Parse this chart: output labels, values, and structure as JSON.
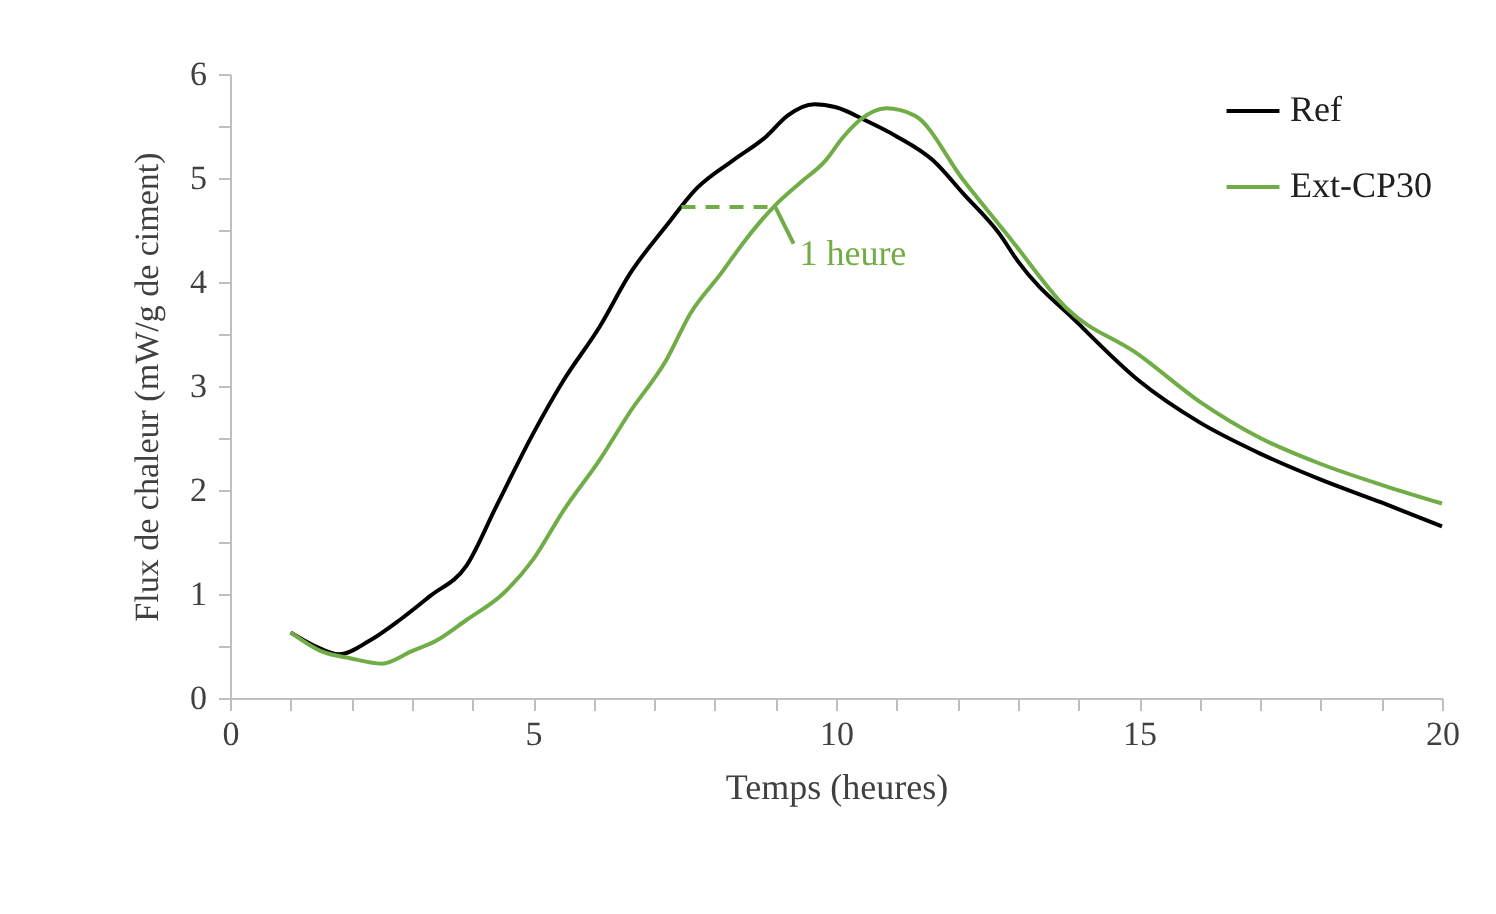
{
  "chart_data": {
    "type": "line",
    "xlabel": "Temps (heures)",
    "ylabel": "Flux de chaleur (mW/g de ciment)",
    "xlim": [
      0,
      20
    ],
    "ylim": [
      0,
      6
    ],
    "xticks": [
      0,
      {
        "value": 1,
        "label": null
      },
      {
        "value": 2,
        "label": null
      },
      {
        "value": 3,
        "label": null
      },
      {
        "value": 4,
        "label": null
      },
      5,
      {
        "value": 6,
        "label": null
      },
      {
        "value": 7,
        "label": null
      },
      {
        "value": 8,
        "label": null
      },
      {
        "value": 9,
        "label": null
      },
      10,
      {
        "value": 11,
        "label": null
      },
      {
        "value": 12,
        "label": null
      },
      {
        "value": 13,
        "label": null
      },
      {
        "value": 14,
        "label": null
      },
      15,
      {
        "value": 16,
        "label": null
      },
      {
        "value": 17,
        "label": null
      },
      {
        "value": 18,
        "label": null
      },
      {
        "value": 19,
        "label": null
      },
      20
    ],
    "yticks": [
      0,
      {
        "value": 0.5,
        "label": null
      },
      1,
      {
        "value": 1.5,
        "label": null
      },
      2,
      {
        "value": 2.5,
        "label": null
      },
      3,
      {
        "value": 3.5,
        "label": null
      },
      4,
      {
        "value": 4.5,
        "label": null
      },
      5,
      {
        "value": 5.5,
        "label": null
      },
      6
    ],
    "grid": false,
    "legend": "top right",
    "marker": "none",
    "line_style": "solid",
    "series": [
      {
        "name": "Ref",
        "color": "#000000",
        "x": [
          1,
          1.4,
          1.8,
          2.3,
          2.8,
          3.3,
          3.9,
          4.4,
          5,
          5.5,
          6.1,
          6.6,
          7.2,
          7.7,
          8.3,
          8.85,
          9.2,
          9.64,
          10,
          10.5,
          11,
          11.6,
          12.1,
          12.7,
          13,
          14,
          15,
          16,
          17,
          18,
          19,
          20
        ],
        "values": [
          0.63,
          0.5,
          0.42,
          0.55,
          0.75,
          0.98,
          1.27,
          1.85,
          2.54,
          3.05,
          3.57,
          4.08,
          4.54,
          4.9,
          5.17,
          5.4,
          5.6,
          5.71,
          5.68,
          5.55,
          5.4,
          5.17,
          4.85,
          4.46,
          4.2,
          3.6,
          3.05,
          2.65,
          2.35,
          2.1,
          1.88,
          1.65
        ]
      },
      {
        "name": "Ext-CP30",
        "color": "#70ad47",
        "x": [
          1,
          1.5,
          2,
          2.5,
          3,
          3.4,
          3.9,
          4.5,
          5,
          5.5,
          6.1,
          6.6,
          7.2,
          7.6,
          8.1,
          8.5,
          9,
          9.4,
          9.83,
          10.1,
          10.4,
          10.83,
          11.3,
          12.1,
          12.9,
          13.8,
          15,
          16,
          17,
          18,
          19,
          20
        ],
        "values": [
          0.63,
          0.45,
          0.38,
          0.33,
          0.45,
          0.55,
          0.75,
          1.0,
          1.33,
          1.8,
          2.29,
          2.75,
          3.25,
          3.7,
          4.08,
          4.4,
          4.74,
          4.95,
          5.17,
          5.38,
          5.56,
          5.67,
          5.6,
          4.98,
          4.4,
          3.75,
          3.3,
          2.85,
          2.5,
          2.25,
          2.05,
          1.87
        ]
      }
    ],
    "annotations": [
      {
        "text": "1 heure",
        "x": 9,
        "y": 4.72
      }
    ]
  }
}
